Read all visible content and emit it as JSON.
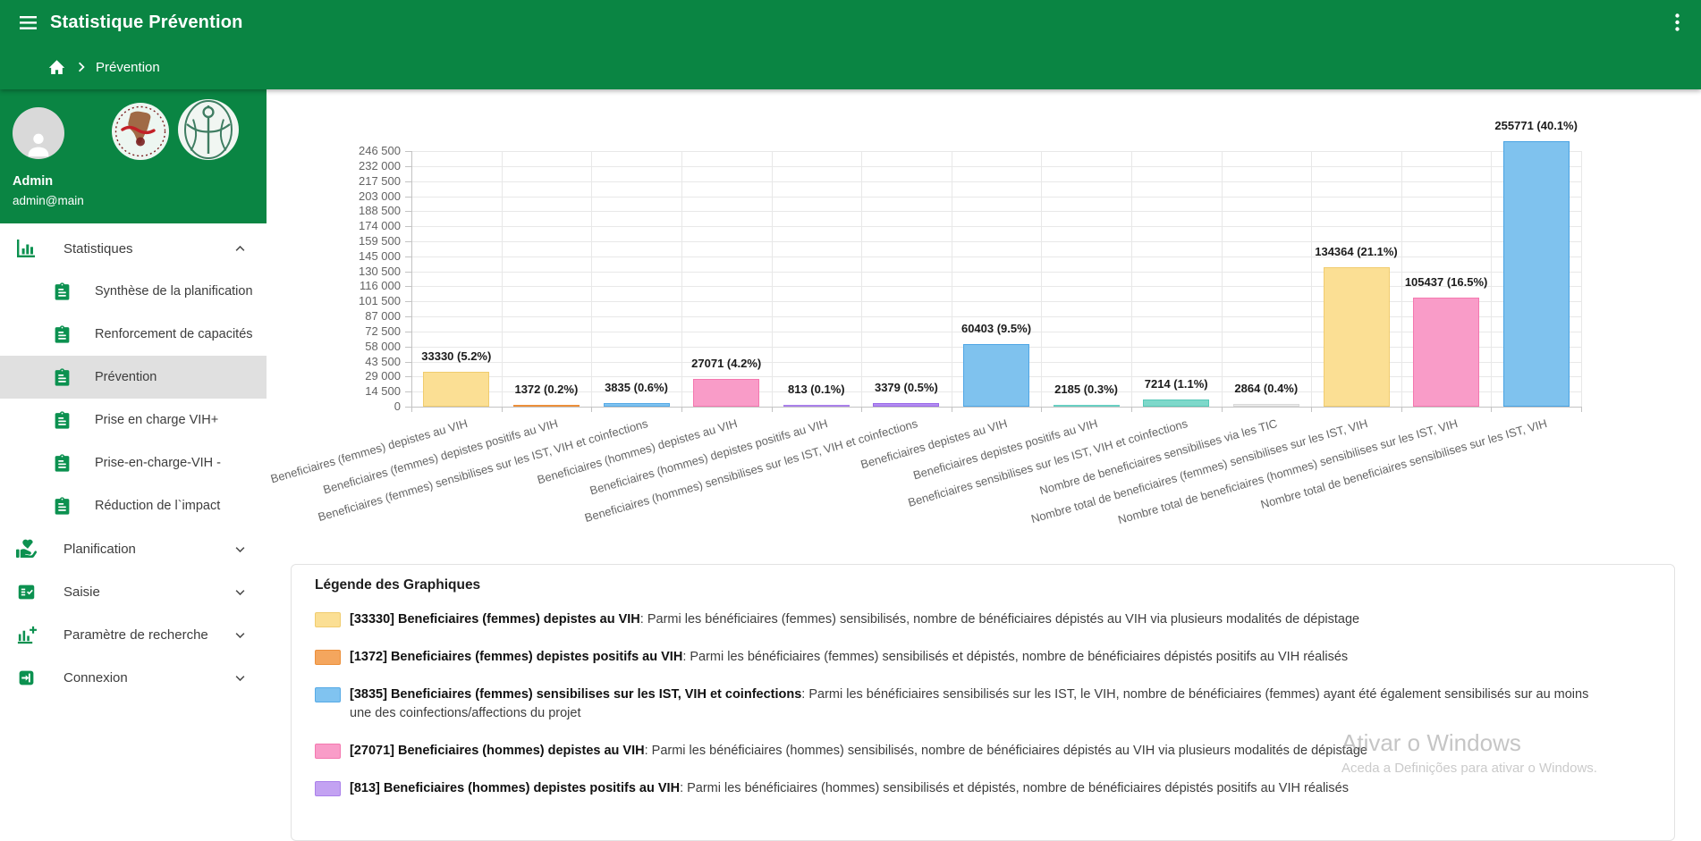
{
  "colors": {
    "primary_green": "#0a8543",
    "icon_green": "#0c9150",
    "selected_item_bg": "#e0e0e0"
  },
  "header": {
    "title": "Statistique Prévention",
    "breadcrumb": "Prévention"
  },
  "sidebar": {
    "user": {
      "name": "Admin",
      "email": "admin@main"
    },
    "menu": [
      {
        "label": "Statistiques",
        "icon": "bar-chart-icon",
        "state": "expanded",
        "children": [
          {
            "label": "Synthèse de la planification",
            "selected": false
          },
          {
            "label": "Renforcement de capacités",
            "selected": false
          },
          {
            "label": "Prévention",
            "selected": true
          },
          {
            "label": "Prise en charge VIH+",
            "selected": false
          },
          {
            "label": "Prise-en-charge-VIH -",
            "selected": false
          },
          {
            "label": "Réduction de l`impact",
            "selected": false
          }
        ]
      },
      {
        "label": "Planification",
        "icon": "hand-heart-icon",
        "state": "collapsed",
        "children": []
      },
      {
        "label": "Saisie",
        "icon": "fact-check-icon",
        "state": "collapsed",
        "children": []
      },
      {
        "label": "Paramètre de recherche",
        "icon": "add-chart-icon",
        "state": "collapsed",
        "children": []
      },
      {
        "label": "Connexion",
        "icon": "login-icon",
        "state": "collapsed",
        "children": []
      }
    ]
  },
  "chart_data": {
    "type": "bar",
    "title": "",
    "xlabel": "",
    "ylabel": "",
    "ylim": [
      0,
      246500
    ],
    "grid": true,
    "y_tick_step": 14500,
    "y_tick_labels": [
      "0",
      "14 500",
      "29 000",
      "43 500",
      "58 000",
      "72 500",
      "87 000",
      "101 500",
      "116 000",
      "130 500",
      "145 000",
      "159 500",
      "174 000",
      "188 500",
      "203 000",
      "217 500",
      "232 000",
      "246 500"
    ],
    "categories": [
      "Beneficiaires (femmes) depistes au VIH",
      "Beneficiaires (femmes) depistes positifs au VIH",
      "Beneficiaires (femmes) sensibilises sur les IST, VIH et coinfections",
      "Beneficiaires (hommes) depistes au VIH",
      "Beneficiaires (hommes) depistes positifs au VIH",
      "Beneficiaires (hommes) sensibilises sur les IST, VIH et coinfections",
      "Beneficiaires depistes au VIH",
      "Beneficiaires depistes positifs au VIH",
      "Beneficiaires sensibilises sur les IST, VIH et coinfections",
      "Nombre de beneficiaires sensibilises via les TIC",
      "Nombre total de beneficiaires (femmes) sensibilises sur les IST, VIH",
      "Nombre total de beneficiaires (hommes) sensibilises sur les IST, VIH",
      "Nombre total de beneficiaires sensibilises sur les IST, VIH"
    ],
    "values": [
      33330,
      1372,
      3835,
      27071,
      813,
      3379,
      60403,
      2185,
      7214,
      2864,
      134364,
      105437,
      255771
    ],
    "percents": [
      5.2,
      0.2,
      0.6,
      4.2,
      0.1,
      0.5,
      9.5,
      0.3,
      1.1,
      0.4,
      21.1,
      16.5,
      40.1
    ],
    "bar_colors": [
      {
        "fill": "#fbdf94",
        "border": "#f0cc6e"
      },
      {
        "fill": "#f4a65e",
        "border": "#ec8f3a"
      },
      {
        "fill": "#80c3f0",
        "border": "#56aae6"
      },
      {
        "fill": "#f99cc8",
        "border": "#f478af"
      },
      {
        "fill": "#c3a2f2",
        "border": "#aa80ea"
      },
      {
        "fill": "#b38cf2",
        "border": "#9a6ae8"
      },
      {
        "fill": "#7fc2ee",
        "border": "#4fa6e5"
      },
      {
        "fill": "#8edcd3",
        "border": "#68cfc2"
      },
      {
        "fill": "#7ed8ca",
        "border": "#57c8b7"
      },
      {
        "fill": "#ededed",
        "border": "#d9d9d9"
      },
      {
        "fill": "#fbdf94",
        "border": "#f0cc6e"
      },
      {
        "fill": "#f99cc8",
        "border": "#f478af"
      },
      {
        "fill": "#7fc2ee",
        "border": "#49a3e3"
      }
    ]
  },
  "legend": {
    "title": "Légende des Graphiques",
    "items": [
      {
        "value": "33330",
        "name": "Beneficiaires (femmes) depistes au VIH",
        "desc": "Parmi les bénéficiaires (femmes) sensibilisés, nombre de bénéficiaires dépistés au VIH via plusieurs modalités de dépistage",
        "fill": "#fbdf94",
        "border": "#f0cc6e"
      },
      {
        "value": "1372",
        "name": "Beneficiaires (femmes) depistes positifs au VIH",
        "desc": "Parmi les bénéficiaires (femmes) sensibilisés et dépistés, nombre de bénéficiaires dépistés positifs au VIH réalisés",
        "fill": "#f4a65e",
        "border": "#ec8f3a"
      },
      {
        "value": "3835",
        "name": "Beneficiaires (femmes) sensibilises sur les IST, VIH et coinfections",
        "desc": "Parmi les bénéficiaires sensibilisés sur les IST, le VIH, nombre de bénéficiaires (femmes) ayant été également sensibilisés sur au moins une des coinfections/affections du projet",
        "fill": "#80c3f0",
        "border": "#56aae6"
      },
      {
        "value": "27071",
        "name": "Beneficiaires (hommes) depistes au VIH",
        "desc": "Parmi les bénéficiaires (hommes) sensibilisés, nombre de bénéficiaires dépistés au VIH via plusieurs modalités de dépistage",
        "fill": "#f99cc8",
        "border": "#f478af"
      },
      {
        "value": "813",
        "name": "Beneficiaires (hommes) depistes positifs au VIH",
        "desc": "Parmi les bénéficiaires (hommes) sensibilisés et dépistés, nombre de bénéficiaires dépistés positifs au VIH réalisés",
        "fill": "#c3a2f2",
        "border": "#aa80ea"
      }
    ]
  },
  "watermark": {
    "line1": "Ativar o Windows",
    "line2": "Aceda a Definições para ativar o Windows."
  }
}
